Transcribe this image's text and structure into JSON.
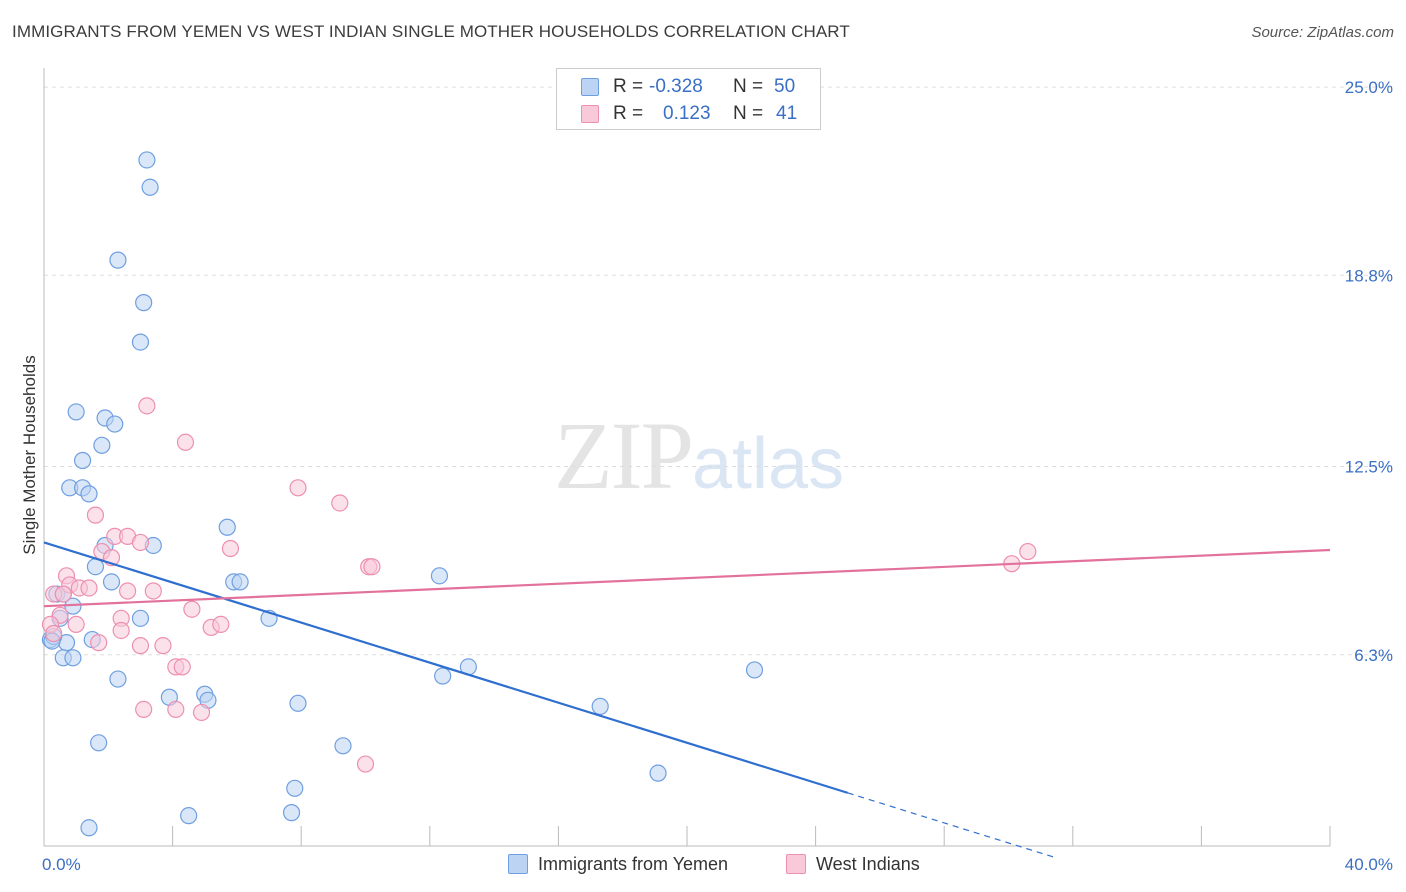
{
  "chart_data": {
    "type": "scatter",
    "title": "IMMIGRANTS FROM YEMEN VS WEST INDIAN SINGLE MOTHER HOUSEHOLDS CORRELATION CHART",
    "source": "Source: ZipAtlas.com",
    "ylabel": "Single Mother Households",
    "xlabel": "",
    "xlim": [
      0,
      40
    ],
    "ylim": [
      0,
      25
    ],
    "x_tick_labels": [
      {
        "value": 0,
        "label": "0.0%"
      },
      {
        "value": 40,
        "label": "40.0%"
      }
    ],
    "y_tick_labels": [
      {
        "value": 6.3,
        "label": "6.3%"
      },
      {
        "value": 12.5,
        "label": "12.5%"
      },
      {
        "value": 18.8,
        "label": "18.8%"
      },
      {
        "value": 25.0,
        "label": "25.0%"
      }
    ],
    "watermark": {
      "zip": "ZIP",
      "atlas": "atlas"
    },
    "legend": [
      {
        "r_label": "R =",
        "r_value": "-0.328",
        "n_label": "N =",
        "n_value": "50"
      },
      {
        "r_label": "R =",
        "r_value": "0.123",
        "n_label": "N =",
        "n_value": "41"
      }
    ],
    "series": [
      {
        "name": "Immigrants from Yemen",
        "color": "#6f9fe0",
        "fill": "#bcd3f3",
        "trend": {
          "x0": 0,
          "y0": 10.0,
          "x1": 25.0,
          "y1": 1.75,
          "dash_to_x": 31.5
        },
        "trend_color": "#2f6fcf",
        "points": [
          [
            3.2,
            22.6
          ],
          [
            3.3,
            21.7
          ],
          [
            2.3,
            19.3
          ],
          [
            3.1,
            17.9
          ],
          [
            3.0,
            16.6
          ],
          [
            1.0,
            14.3
          ],
          [
            1.9,
            14.1
          ],
          [
            2.2,
            13.9
          ],
          [
            1.8,
            13.2
          ],
          [
            1.2,
            12.7
          ],
          [
            0.8,
            11.8
          ],
          [
            1.2,
            11.8
          ],
          [
            1.4,
            11.6
          ],
          [
            5.7,
            10.5
          ],
          [
            3.4,
            9.9
          ],
          [
            1.9,
            9.9
          ],
          [
            1.6,
            9.2
          ],
          [
            2.1,
            8.7
          ],
          [
            5.9,
            8.7
          ],
          [
            6.1,
            8.7
          ],
          [
            12.3,
            8.9
          ],
          [
            0.4,
            8.3
          ],
          [
            0.6,
            8.3
          ],
          [
            0.9,
            7.9
          ],
          [
            0.5,
            7.5
          ],
          [
            3.0,
            7.5
          ],
          [
            7.0,
            7.5
          ],
          [
            1.5,
            6.8
          ],
          [
            0.7,
            6.7
          ],
          [
            0.2,
            6.8
          ],
          [
            0.3,
            6.9
          ],
          [
            0.6,
            6.2
          ],
          [
            0.9,
            6.2
          ],
          [
            12.4,
            5.6
          ],
          [
            13.2,
            5.9
          ],
          [
            22.1,
            5.8
          ],
          [
            2.3,
            5.5
          ],
          [
            3.9,
            4.9
          ],
          [
            5.0,
            5.0
          ],
          [
            5.1,
            4.8
          ],
          [
            7.9,
            4.7
          ],
          [
            17.3,
            4.6
          ],
          [
            1.7,
            3.4
          ],
          [
            9.3,
            3.3
          ],
          [
            19.1,
            2.4
          ],
          [
            7.8,
            1.9
          ],
          [
            4.5,
            1.0
          ],
          [
            7.7,
            1.1
          ],
          [
            1.4,
            0.6
          ],
          [
            0.25,
            6.75
          ]
        ]
      },
      {
        "name": "West Indians",
        "color": "#ee8fb0",
        "fill": "#f8c9d8",
        "trend": {
          "x0": 0,
          "y0": 7.9,
          "x1": 40.0,
          "y1": 9.75
        },
        "trend_color": "#e2719b",
        "points": [
          [
            3.2,
            14.5
          ],
          [
            4.4,
            13.3
          ],
          [
            7.9,
            11.8
          ],
          [
            9.2,
            11.3
          ],
          [
            1.6,
            10.9
          ],
          [
            2.2,
            10.2
          ],
          [
            2.6,
            10.2
          ],
          [
            3.0,
            10.0
          ],
          [
            5.8,
            9.8
          ],
          [
            1.8,
            9.7
          ],
          [
            2.1,
            9.5
          ],
          [
            10.1,
            9.2
          ],
          [
            10.2,
            9.2
          ],
          [
            30.6,
            9.7
          ],
          [
            30.1,
            9.3
          ],
          [
            0.7,
            8.9
          ],
          [
            0.8,
            8.6
          ],
          [
            1.1,
            8.5
          ],
          [
            1.4,
            8.5
          ],
          [
            3.4,
            8.4
          ],
          [
            2.6,
            8.4
          ],
          [
            0.3,
            8.3
          ],
          [
            0.6,
            8.3
          ],
          [
            4.6,
            7.8
          ],
          [
            0.5,
            7.6
          ],
          [
            2.4,
            7.5
          ],
          [
            0.2,
            7.3
          ],
          [
            1.0,
            7.3
          ],
          [
            5.2,
            7.2
          ],
          [
            5.5,
            7.3
          ],
          [
            2.4,
            7.1
          ],
          [
            0.3,
            7.0
          ],
          [
            1.7,
            6.7
          ],
          [
            3.0,
            6.6
          ],
          [
            3.7,
            6.6
          ],
          [
            4.1,
            5.9
          ],
          [
            4.3,
            5.9
          ],
          [
            3.1,
            4.5
          ],
          [
            4.1,
            4.5
          ],
          [
            4.9,
            4.4
          ],
          [
            10.0,
            2.7
          ]
        ]
      }
    ]
  }
}
